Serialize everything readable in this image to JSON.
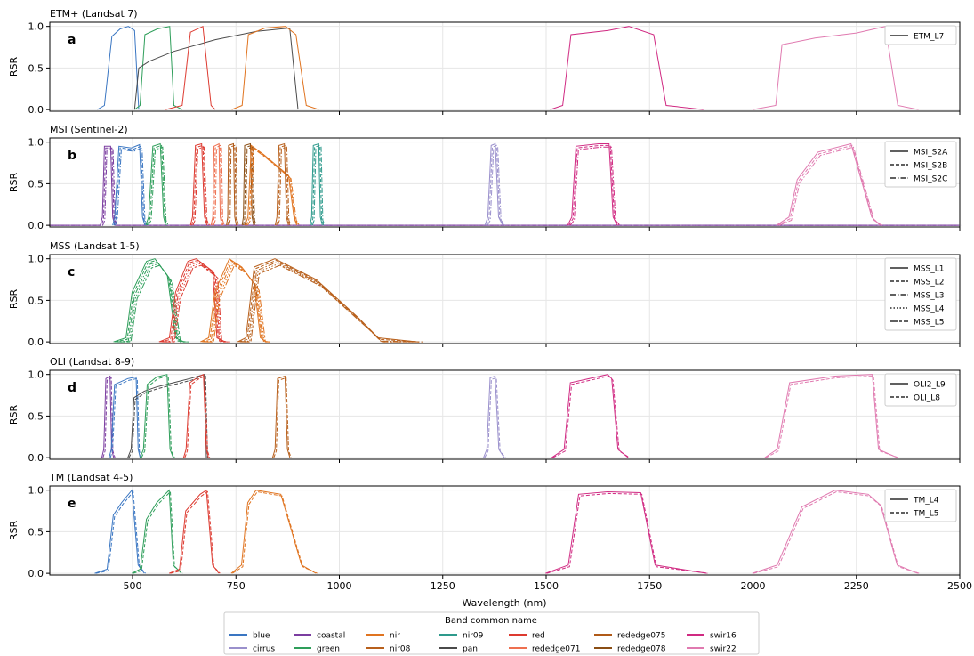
{
  "figure": {
    "xlabel": "Wavelength (nm)",
    "ylabel": "RSR",
    "xlim": [
      300,
      2500
    ],
    "ylim": [
      -0.02,
      1.05
    ],
    "xticks": [
      500,
      750,
      1000,
      1250,
      1500,
      1750,
      2000,
      2250,
      2500
    ],
    "yticks": [
      0.0,
      0.5,
      1.0
    ],
    "grid": true,
    "legend_title": "Band common name",
    "band_colors": {
      "blue": "#3a76c2",
      "cirrus": "#9a90cc",
      "coastal": "#7b3da0",
      "green": "#2e9e5a",
      "nir": "#e07420",
      "nir08": "#b8601c",
      "nir09": "#2e9a8c",
      "pan": "#4a4a4a",
      "red": "#dd3a30",
      "rededge071": "#ee7050",
      "rededge075": "#b05a18",
      "rededge078": "#8a4e14",
      "swir16": "#d02a82",
      "swir22": "#e07ab0"
    },
    "band_legend": [
      "blue",
      "cirrus",
      "coastal",
      "green",
      "nir",
      "nir08",
      "nir09",
      "pan",
      "red",
      "rededge071",
      "rededge075",
      "rededge078",
      "swir16",
      "swir22"
    ]
  },
  "chart_data": [
    {
      "type": "line",
      "title": "ETM+ (Landsat 7)",
      "panel_label": "a",
      "legend": [
        "ETM_L7"
      ],
      "bands": [
        {
          "band": "blue",
          "x": [
            415,
            432,
            450,
            470,
            490,
            505,
            515
          ],
          "y": [
            0,
            0.05,
            0.88,
            0.97,
            1.0,
            0.95,
            0
          ]
        },
        {
          "band": "green",
          "x": [
            505,
            518,
            530,
            560,
            590,
            600,
            620
          ],
          "y": [
            0,
            0.05,
            0.9,
            0.97,
            1.0,
            0.05,
            0
          ]
        },
        {
          "band": "pan",
          "x": [
            505,
            515,
            540,
            600,
            700,
            800,
            880,
            900
          ],
          "y": [
            0,
            0.5,
            0.58,
            0.7,
            0.84,
            0.94,
            0.98,
            0
          ]
        },
        {
          "band": "red",
          "x": [
            580,
            620,
            640,
            670,
            690,
            700
          ],
          "y": [
            0,
            0.05,
            0.93,
            1.0,
            0.05,
            0
          ]
        },
        {
          "band": "nir",
          "x": [
            740,
            765,
            780,
            820,
            870,
            895,
            920,
            950
          ],
          "y": [
            0,
            0.05,
            0.9,
            0.98,
            1.0,
            0.9,
            0.05,
            0
          ]
        },
        {
          "band": "swir16",
          "x": [
            1510,
            1540,
            1560,
            1650,
            1700,
            1760,
            1790,
            1880
          ],
          "y": [
            0,
            0.05,
            0.9,
            0.95,
            1.0,
            0.9,
            0.05,
            0
          ]
        },
        {
          "band": "swir22",
          "x": [
            2000,
            2055,
            2070,
            2150,
            2250,
            2320,
            2350,
            2400
          ],
          "y": [
            0,
            0.05,
            0.78,
            0.86,
            0.92,
            1.0,
            0.05,
            0
          ]
        }
      ]
    },
    {
      "type": "line",
      "title": "MSI (Sentinel-2)",
      "panel_label": "b",
      "legend": [
        "MSI_S2A",
        "MSI_S2B",
        "MSI_S2C"
      ],
      "bands": [
        {
          "band": "coastal",
          "x": [
            300,
            425,
            430,
            435,
            450,
            455,
            460,
            2500
          ],
          "y": [
            0,
            0,
            0.1,
            0.95,
            0.95,
            0.1,
            0,
            0
          ]
        },
        {
          "band": "blue",
          "x": [
            455,
            460,
            470,
            500,
            520,
            527,
            533
          ],
          "y": [
            0,
            0.1,
            0.95,
            0.93,
            0.97,
            0.1,
            0
          ]
        },
        {
          "band": "green",
          "x": [
            535,
            542,
            552,
            570,
            578,
            583
          ],
          "y": [
            0,
            0.1,
            0.95,
            0.98,
            0.1,
            0
          ]
        },
        {
          "band": "red",
          "x": [
            643,
            648,
            655,
            670,
            677,
            683
          ],
          "y": [
            0,
            0.1,
            0.96,
            0.98,
            0.1,
            0
          ]
        },
        {
          "band": "rededge071",
          "x": [
            693,
            697,
            700,
            712,
            715,
            719
          ],
          "y": [
            0,
            0.1,
            0.95,
            0.98,
            0.1,
            0
          ]
        },
        {
          "band": "rededge075",
          "x": [
            730,
            733,
            735,
            747,
            750,
            754
          ],
          "y": [
            0,
            0.1,
            0.96,
            0.98,
            0.1,
            0
          ]
        },
        {
          "band": "rededge078",
          "x": [
            768,
            771,
            774,
            788,
            792,
            796
          ],
          "y": [
            0,
            0.1,
            0.96,
            0.98,
            0.1,
            0
          ]
        },
        {
          "band": "nir",
          "x": [
            775,
            782,
            790,
            820,
            880,
            893,
            900
          ],
          "y": [
            0,
            0.1,
            0.96,
            0.85,
            0.6,
            0.1,
            0
          ]
        },
        {
          "band": "nir08",
          "x": [
            848,
            852,
            857,
            870,
            875,
            880
          ],
          "y": [
            0,
            0.1,
            0.96,
            0.98,
            0.1,
            0
          ]
        },
        {
          "band": "nir09",
          "x": [
            932,
            936,
            940,
            953,
            957,
            962
          ],
          "y": [
            0,
            0.1,
            0.96,
            0.98,
            0.1,
            0
          ]
        },
        {
          "band": "cirrus",
          "x": [
            1355,
            1362,
            1370,
            1380,
            1388,
            1398
          ],
          "y": [
            0,
            0.1,
            0.96,
            0.98,
            0.1,
            0
          ]
        },
        {
          "band": "swir16",
          "x": [
            1555,
            1565,
            1575,
            1630,
            1655,
            1665,
            1675
          ],
          "y": [
            0,
            0.1,
            0.95,
            0.98,
            0.98,
            0.1,
            0
          ]
        },
        {
          "band": "swir22",
          "x": [
            2060,
            2090,
            2110,
            2160,
            2240,
            2290,
            2310
          ],
          "y": [
            0,
            0.1,
            0.55,
            0.88,
            0.98,
            0.1,
            0
          ]
        }
      ]
    },
    {
      "type": "line",
      "title": "MSS (Landsat 1-5)",
      "panel_label": "c",
      "legend": [
        "MSS_L1",
        "MSS_L2",
        "MSS_L3",
        "MSS_L4",
        "MSS_L5"
      ],
      "bands": [
        {
          "band": "green",
          "x": [
            460,
            490,
            505,
            540,
            560,
            590,
            610,
            630
          ],
          "y": [
            0,
            0.05,
            0.6,
            0.97,
            1.0,
            0.8,
            0.05,
            0
          ]
        },
        {
          "band": "red",
          "x": [
            570,
            595,
            610,
            640,
            660,
            700,
            710,
            730
          ],
          "y": [
            0,
            0.05,
            0.6,
            0.97,
            1.0,
            0.85,
            0.05,
            0
          ]
        },
        {
          "band": "nir",
          "x": [
            670,
            690,
            705,
            740,
            770,
            800,
            815,
            830
          ],
          "y": [
            0,
            0.05,
            0.6,
            1.0,
            0.9,
            0.7,
            0.05,
            0
          ]
        },
        {
          "band": "nir08",
          "x": [
            760,
            780,
            800,
            850,
            950,
            1050,
            1100,
            1195
          ],
          "y": [
            0,
            0.05,
            0.9,
            1.0,
            0.75,
            0.3,
            0.05,
            0
          ]
        }
      ]
    },
    {
      "type": "line",
      "title": "OLI (Landsat 8-9)",
      "panel_label": "d",
      "legend": [
        "OLI2_L9",
        "OLI_L8"
      ],
      "bands": [
        {
          "band": "coastal",
          "x": [
            427,
            432,
            437,
            447,
            451,
            456
          ],
          "y": [
            0,
            0.1,
            0.95,
            0.98,
            0.1,
            0
          ]
        },
        {
          "band": "blue",
          "x": [
            445,
            450,
            458,
            490,
            510,
            515,
            520
          ],
          "y": [
            0,
            0.1,
            0.88,
            0.95,
            0.97,
            0.1,
            0
          ]
        },
        {
          "band": "pan",
          "x": [
            490,
            498,
            505,
            530,
            560,
            600,
            640,
            675,
            680
          ],
          "y": [
            0,
            0.1,
            0.72,
            0.8,
            0.85,
            0.9,
            0.95,
            1.0,
            0
          ]
        },
        {
          "band": "green",
          "x": [
            520,
            528,
            537,
            560,
            585,
            592,
            600
          ],
          "y": [
            0,
            0.1,
            0.88,
            0.97,
            1.0,
            0.1,
            0
          ]
        },
        {
          "band": "red",
          "x": [
            625,
            631,
            640,
            660,
            673,
            680,
            685
          ],
          "y": [
            0,
            0.1,
            0.9,
            0.97,
            1.0,
            0.1,
            0
          ]
        },
        {
          "band": "nir08",
          "x": [
            840,
            846,
            852,
            870,
            876,
            882
          ],
          "y": [
            0,
            0.1,
            0.95,
            0.98,
            0.1,
            0
          ]
        },
        {
          "band": "cirrus",
          "x": [
            1350,
            1358,
            1366,
            1378,
            1387,
            1400
          ],
          "y": [
            0,
            0.1,
            0.96,
            0.98,
            0.1,
            0
          ]
        },
        {
          "band": "swir16",
          "x": [
            1515,
            1545,
            1560,
            1650,
            1660,
            1675,
            1700
          ],
          "y": [
            0,
            0.1,
            0.9,
            1.0,
            0.95,
            0.1,
            0
          ]
        },
        {
          "band": "swir22",
          "x": [
            2030,
            2060,
            2090,
            2200,
            2290,
            2305,
            2350
          ],
          "y": [
            0,
            0.1,
            0.9,
            0.98,
            1.0,
            0.1,
            0
          ]
        }
      ]
    },
    {
      "type": "line",
      "title": "TM (Landsat 4-5)",
      "panel_label": "e",
      "legend": [
        "TM_L4",
        "TM_L5"
      ],
      "bands": [
        {
          "band": "blue",
          "x": [
            410,
            440,
            455,
            475,
            500,
            515,
            530
          ],
          "y": [
            0,
            0.05,
            0.7,
            0.85,
            1.0,
            0.1,
            0
          ]
        },
        {
          "band": "green",
          "x": [
            500,
            520,
            535,
            560,
            590,
            600,
            620
          ],
          "y": [
            0,
            0.05,
            0.65,
            0.85,
            1.0,
            0.1,
            0
          ]
        },
        {
          "band": "red",
          "x": [
            590,
            615,
            630,
            665,
            680,
            695,
            710
          ],
          "y": [
            0,
            0.05,
            0.75,
            0.95,
            1.0,
            0.1,
            0
          ]
        },
        {
          "band": "nir",
          "x": [
            740,
            765,
            780,
            800,
            860,
            910,
            945
          ],
          "y": [
            0,
            0.1,
            0.85,
            1.0,
            0.95,
            0.1,
            0
          ]
        },
        {
          "band": "swir16",
          "x": [
            1500,
            1555,
            1580,
            1650,
            1730,
            1765,
            1890
          ],
          "y": [
            0,
            0.1,
            0.95,
            0.98,
            0.97,
            0.1,
            0
          ]
        },
        {
          "band": "swir22",
          "x": [
            2000,
            2060,
            2120,
            2200,
            2280,
            2310,
            2350,
            2400
          ],
          "y": [
            0,
            0.1,
            0.8,
            1.0,
            0.95,
            0.82,
            0.1,
            0
          ]
        }
      ]
    }
  ]
}
